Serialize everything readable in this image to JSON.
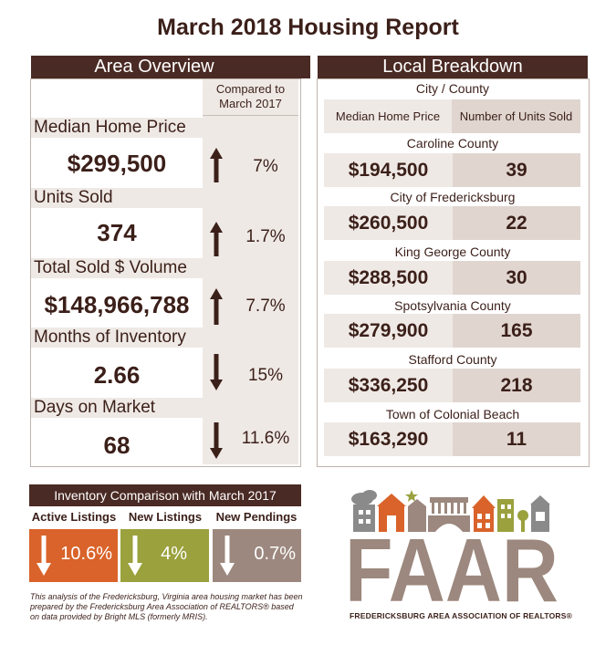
{
  "title": "March 2018 Housing Report",
  "area_overview": {
    "header": "Area Overview",
    "compared_to": "Compared to March 2017",
    "metrics": [
      {
        "label": "Median Home Price",
        "value": "$299,500",
        "direction": "up",
        "change": "7%"
      },
      {
        "label": "Units Sold",
        "value": "374",
        "direction": "up",
        "change": "1.7%"
      },
      {
        "label": "Total Sold $ Volume",
        "value": "$148,966,788",
        "direction": "up",
        "change": "7.7%"
      },
      {
        "label": "Months of Inventory",
        "value": "2.66",
        "direction": "down",
        "change": "15%"
      },
      {
        "label": "Days on Market",
        "value": "68",
        "direction": "down",
        "change": "11.6%"
      }
    ]
  },
  "local_breakdown": {
    "header": "Local Breakdown",
    "subheader": "City / County",
    "col_price": "Median Home Price",
    "col_units": "Number of Units Sold",
    "areas": [
      {
        "name": "Caroline County",
        "price": "$194,500",
        "units": "39"
      },
      {
        "name": "City of Fredericksburg",
        "price": "$260,500",
        "units": "22"
      },
      {
        "name": "King George County",
        "price": "$288,500",
        "units": "30"
      },
      {
        "name": "Spotsylvania County",
        "price": "$279,900",
        "units": "165"
      },
      {
        "name": "Stafford County",
        "price": "$336,250",
        "units": "218"
      },
      {
        "name": "Town of Colonial Beach",
        "price": "$163,290",
        "units": "11"
      }
    ]
  },
  "inventory": {
    "header": "Inventory Comparison with March 2017",
    "items": [
      {
        "label": "Active Listings",
        "change": "10.6%",
        "direction": "down",
        "color": "#d9632a"
      },
      {
        "label": "New Listings",
        "change": "4%",
        "direction": "down",
        "color": "#9aa13d"
      },
      {
        "label": "New Pendings",
        "change": "0.7%",
        "direction": "down",
        "color": "#9c887e"
      }
    ]
  },
  "disclaimer": "This analysis of the Fredericksburg, Virginia area housing market has been prepared by the Fredericksburg Area Association of REALTORS® based on data provided by Bright MLS (formerly MRIS).",
  "logo": {
    "wordmark": "FAAR",
    "subtitle": "FREDERICKSBURG AREA ASSOCIATION OF REALTORS®"
  },
  "colors": {
    "brown": "#4a2a24",
    "light": "#efe9e5",
    "medium": "#e0d5cf",
    "orange": "#d9632a",
    "green": "#9aa13d",
    "gray": "#9c887e"
  }
}
